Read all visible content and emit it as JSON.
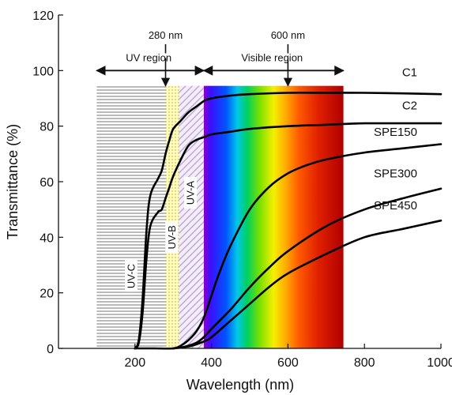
{
  "chart_data": {
    "type": "line",
    "xlabel": "Wavelength (nm)",
    "ylabel": "Transmittance (%)",
    "xlim": [
      0,
      1000
    ],
    "ylim": [
      0,
      120
    ],
    "xticks": [
      200,
      400,
      600,
      800,
      1000
    ],
    "yticks": [
      0,
      20,
      40,
      60,
      80,
      100,
      120
    ],
    "grid": false,
    "regions": [
      {
        "name": "UV-C",
        "x": [
          100,
          280
        ],
        "pattern": "horizontal-lines"
      },
      {
        "name": "UV-B",
        "x": [
          280,
          315
        ],
        "pattern": "yellow-dots"
      },
      {
        "name": "UV-A",
        "x": [
          315,
          380
        ],
        "pattern": "diagonal-hatch"
      },
      {
        "name": "visible-spectrum",
        "x": [
          380,
          745
        ],
        "pattern": "rainbow"
      }
    ],
    "annotations": [
      {
        "text": "280 nm",
        "x": 280
      },
      {
        "text": "600 nm",
        "x": 600
      },
      {
        "text": "UV region",
        "x_from": 100,
        "x_to": 380,
        "y": 100
      },
      {
        "text": "Visible region",
        "x_from": 380,
        "x_to": 745,
        "y": 100
      }
    ],
    "series": [
      {
        "name": "C1",
        "x": [
          200,
          210,
          220,
          230,
          240,
          260,
          270,
          280,
          290,
          300,
          320,
          340,
          360,
          380,
          400,
          450,
          500,
          600,
          700,
          800,
          900,
          1000
        ],
        "y": [
          0,
          3,
          18,
          42,
          55,
          61,
          64,
          70,
          75,
          79,
          82,
          85,
          87,
          89,
          90,
          91,
          91.5,
          92,
          92,
          92,
          91.8,
          91.5
        ]
      },
      {
        "name": "C2",
        "x": [
          200,
          210,
          220,
          230,
          240,
          260,
          270,
          280,
          290,
          300,
          320,
          340,
          360,
          380,
          400,
          450,
          500,
          600,
          700,
          800,
          900,
          1000
        ],
        "y": [
          0,
          2,
          13,
          32,
          44,
          49,
          50,
          54,
          58,
          62,
          68,
          73,
          75,
          76,
          77,
          78,
          79,
          80,
          80.5,
          81,
          81,
          81
        ]
      },
      {
        "name": "SPE150",
        "x": [
          200,
          250,
          300,
          320,
          340,
          360,
          380,
          400,
          420,
          450,
          500,
          550,
          600,
          650,
          700,
          800,
          900,
          1000
        ],
        "y": [
          0,
          0,
          0,
          1,
          3,
          6,
          11,
          19,
          27,
          37,
          50,
          58,
          63,
          66,
          68,
          70.5,
          72,
          73.5
        ]
      },
      {
        "name": "SPE300",
        "x": [
          300,
          320,
          340,
          360,
          380,
          400,
          450,
          500,
          550,
          600,
          700,
          800,
          900,
          1000
        ],
        "y": [
          0,
          0.3,
          1,
          2,
          4,
          7,
          14,
          22,
          29,
          35,
          44,
          50,
          54,
          57.5
        ]
      },
      {
        "name": "SPE450",
        "x": [
          300,
          330,
          350,
          380,
          400,
          450,
          500,
          550,
          600,
          700,
          800,
          900,
          1000
        ],
        "y": [
          0,
          0.5,
          1,
          2.5,
          4,
          10,
          16,
          22,
          27,
          34,
          40,
          43,
          46
        ]
      }
    ],
    "band_labels": [
      {
        "text": "UV-C",
        "x": 190,
        "y": 26
      },
      {
        "text": "UV-B",
        "x": 296,
        "y": 40
      },
      {
        "text": "UV-A",
        "x": 345,
        "y": 56
      }
    ]
  }
}
